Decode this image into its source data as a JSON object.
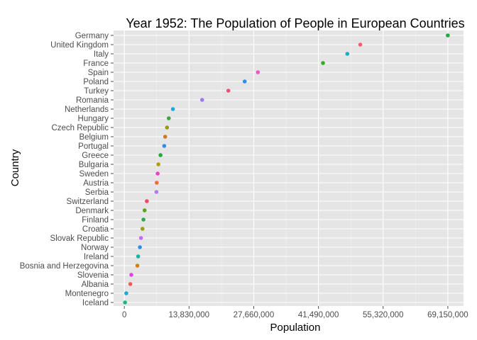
{
  "chart_data": {
    "type": "scatter",
    "title": "Year 1952: The Population of People in European Countries",
    "xlabel": "Population",
    "ylabel": "Country",
    "xlim": [
      -2300000,
      72500000
    ],
    "x_ticks": [
      0,
      13830000,
      27660000,
      41490000,
      55320000,
      69150000
    ],
    "x_tick_labels": [
      "0",
      "13,830,000",
      "27,660,000",
      "41,490,000",
      "55,320,000",
      "69,150,000"
    ],
    "grid": true,
    "legend": "none",
    "colors": {
      "panel_bg": "#e5e5e5",
      "grid": "#ffffff",
      "tick": "#4d4d4d"
    },
    "points": [
      {
        "country": "Germany",
        "population": 69145952,
        "color": "#28a745"
      },
      {
        "country": "United Kingdom",
        "population": 50430000,
        "color": "#f25b72"
      },
      {
        "country": "Italy",
        "population": 47666000,
        "color": "#1aaec0"
      },
      {
        "country": "France",
        "population": 42459667,
        "color": "#39a82a"
      },
      {
        "country": "Spain",
        "population": 28549870,
        "color": "#f052cc"
      },
      {
        "country": "Poland",
        "population": 25730551,
        "color": "#2b8ff0"
      },
      {
        "country": "Turkey",
        "population": 22235677,
        "color": "#f2507a"
      },
      {
        "country": "Romania",
        "population": 16630000,
        "color": "#9a7cf2"
      },
      {
        "country": "Netherlands",
        "population": 10381988,
        "color": "#1ea9d6"
      },
      {
        "country": "Hungary",
        "population": 9504000,
        "color": "#3aa83a"
      },
      {
        "country": "Czech Republic",
        "population": 9125183,
        "color": "#9a9a10"
      },
      {
        "country": "Belgium",
        "population": 8730405,
        "color": "#cf7a1f"
      },
      {
        "country": "Portugal",
        "population": 8526050,
        "color": "#2f8fe6"
      },
      {
        "country": "Greece",
        "population": 7733250,
        "color": "#24a83e"
      },
      {
        "country": "Bulgaria",
        "population": 7274900,
        "color": "#b59a10"
      },
      {
        "country": "Sweden",
        "population": 7124673,
        "color": "#f040c8"
      },
      {
        "country": "Austria",
        "population": 6927772,
        "color": "#e8703a"
      },
      {
        "country": "Serbia",
        "population": 6860147,
        "color": "#b07cf0"
      },
      {
        "country": "Switzerland",
        "population": 4815000,
        "color": "#f04a5e"
      },
      {
        "country": "Denmark",
        "population": 4334000,
        "color": "#58a21e"
      },
      {
        "country": "Finland",
        "population": 4090500,
        "color": "#2ea84e"
      },
      {
        "country": "Croatia",
        "population": 3882229,
        "color": "#9a9e10"
      },
      {
        "country": "Slovak Republic",
        "population": 3558137,
        "color": "#c86af0"
      },
      {
        "country": "Norway",
        "population": 3327728,
        "color": "#2a90f0"
      },
      {
        "country": "Ireland",
        "population": 2952156,
        "color": "#1fb0a0"
      },
      {
        "country": "Bosnia and Herzegovina",
        "population": 2791000,
        "color": "#d0820f"
      },
      {
        "country": "Slovenia",
        "population": 1489518,
        "color": "#e043e6"
      },
      {
        "country": "Albania",
        "population": 1282697,
        "color": "#f25b52"
      },
      {
        "country": "Montenegro",
        "population": 413834,
        "color": "#1aaad8"
      },
      {
        "country": "Iceland",
        "population": 147962,
        "color": "#1db386"
      }
    ]
  }
}
